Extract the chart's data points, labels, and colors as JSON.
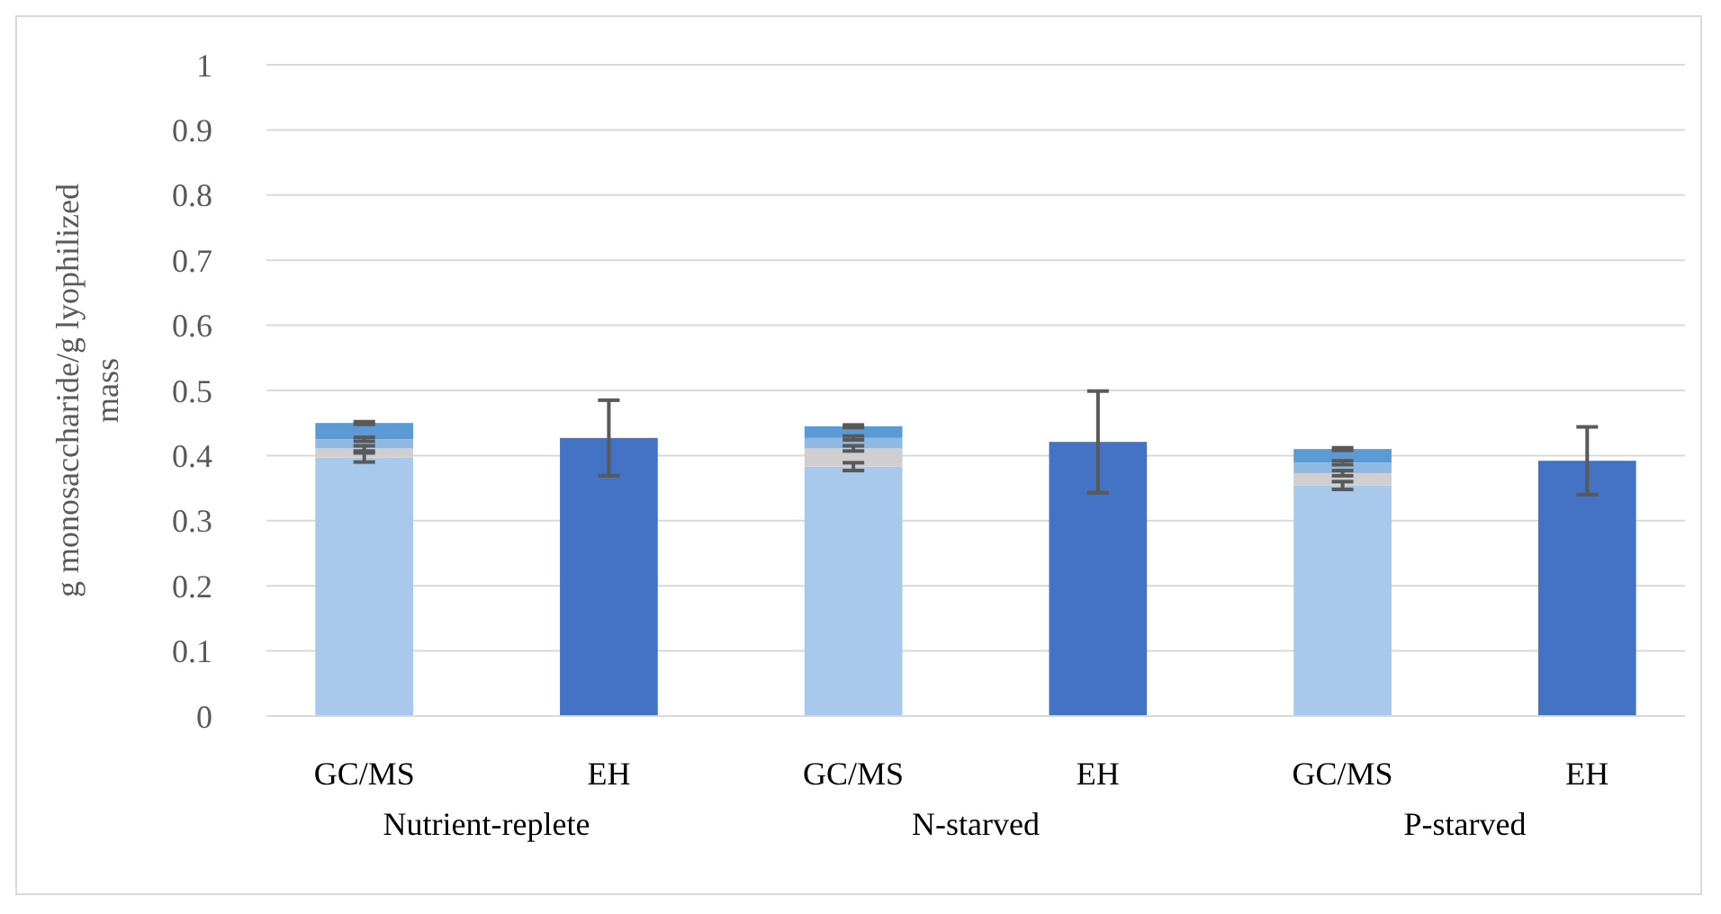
{
  "chart_data": {
    "type": "bar",
    "stacked": true,
    "ylabel": "g monosaccharide/g lyophilized mass",
    "categories": [
      "GC/MS",
      "EH",
      "GC/MS",
      "EH",
      "GC/MS",
      "EH"
    ],
    "series": [
      {
        "color": "#a9c9ec",
        "values": [
          0.397,
          null,
          0.383,
          null,
          0.354,
          null
        ],
        "errors": [
          0.007,
          null,
          0.006,
          null,
          0.006,
          null
        ]
      },
      {
        "color": "#d0cece",
        "values": [
          0.014,
          null,
          0.028,
          null,
          0.019,
          null
        ],
        "errors": [
          0.004,
          null,
          0.004,
          null,
          0.004,
          null
        ]
      },
      {
        "color": "#8fb8e3",
        "values": [
          0.014,
          null,
          0.016,
          null,
          0.016,
          null
        ],
        "errors": [
          0.003,
          null,
          0.003,
          null,
          0.003,
          null
        ]
      },
      {
        "color": "#5b9bd5",
        "values": [
          0.025,
          null,
          0.018,
          null,
          0.021,
          null
        ],
        "errors": [
          0.002,
          null,
          0.002,
          null,
          0.002,
          null
        ]
      },
      {
        "color": "#4472c4",
        "values": [
          null,
          0.427,
          null,
          0.421,
          null,
          0.392
        ],
        "errors": [
          null,
          0.058,
          null,
          0.078,
          null,
          0.052
        ]
      }
    ],
    "ylim": [
      0,
      1
    ],
    "yticks": [
      0,
      0.1,
      0.2,
      0.3,
      0.4,
      0.5,
      0.6,
      0.7,
      0.8,
      0.9,
      1
    ],
    "grid": "y",
    "annotations": [
      "Nutrient-replete",
      "N-starved",
      "P-starved"
    ]
  }
}
